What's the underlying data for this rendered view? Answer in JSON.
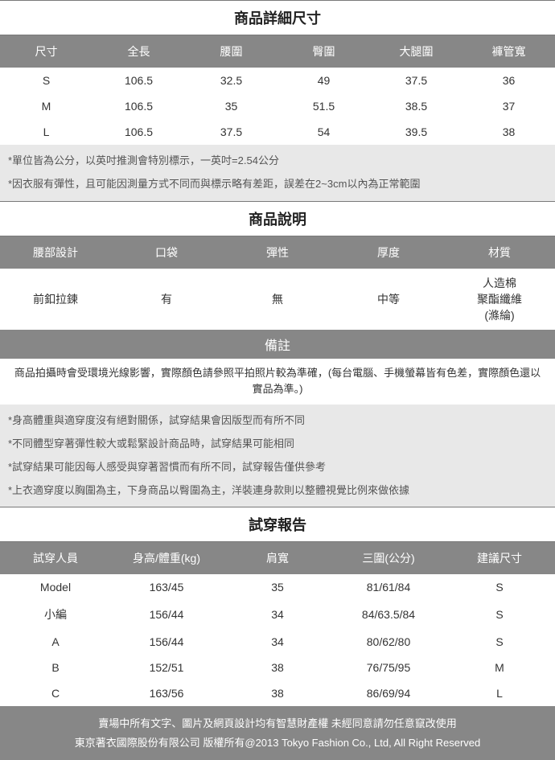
{
  "colors": {
    "header_bg": "#878787",
    "header_fg": "#ffffff",
    "body_fg": "#333333",
    "note_bg": "#e8e8e8",
    "border": "#7a7a7a"
  },
  "typography": {
    "title_fontsize": 18,
    "th_fontsize": 14,
    "td_fontsize": 14,
    "note_fontsize": 13,
    "foot_fontsize": 13
  },
  "size_section": {
    "title": "商品詳細尺寸",
    "columns": [
      "尺寸",
      "全長",
      "腰圍",
      "臀圍",
      "大腿圍",
      "褲管寬"
    ],
    "rows": [
      [
        "S",
        "106.5",
        "32.5",
        "49",
        "37.5",
        "36"
      ],
      [
        "M",
        "106.5",
        "35",
        "51.5",
        "38.5",
        "37"
      ],
      [
        "L",
        "106.5",
        "37.5",
        "54",
        "39.5",
        "38"
      ]
    ],
    "notes": [
      "*單位皆為公分，以英吋推測會特別標示，一英吋=2.54公分",
      "*因衣服有彈性，且可能因測量方式不同而與標示略有差距，誤差在2~3cm以內為正常範圍"
    ]
  },
  "desc_section": {
    "title": "商品說明",
    "columns": [
      "腰部設計",
      "口袋",
      "彈性",
      "厚度",
      "材質"
    ],
    "rows": [
      [
        "前釦拉鍊",
        "有",
        "無",
        "中等",
        "人造棉\n聚酯纖維\n(滌綸)"
      ]
    ]
  },
  "remark_section": {
    "title": "備註",
    "main": "商品拍攝時會受環境光線影響，實際顏色請參照平拍照片較為準確，(每台電腦、手機螢幕皆有色差，實際顏色還以實品為準。)",
    "notes": [
      "*身高體重與適穿度沒有絕對關係，試穿結果會因版型而有所不同",
      "*不同體型穿著彈性較大或鬆緊設計商品時，試穿結果可能相同",
      "*試穿結果可能因每人感受與穿著習慣而有所不同，試穿報告僅供參考",
      "*上衣適穿度以胸圍為主，下身商品以臀圍為主，洋裝連身款則以整體視覺比例來做依據"
    ]
  },
  "fit_section": {
    "title": "試穿報告",
    "columns": [
      "試穿人員",
      "身高/體重(kg)",
      "肩寬",
      "三圍(公分)",
      "建議尺寸"
    ],
    "rows": [
      [
        "Model",
        "163/45",
        "35",
        "81/61/84",
        "S"
      ],
      [
        "小編",
        "156/44",
        "34",
        "84/63.5/84",
        "S"
      ],
      [
        "A",
        "156/44",
        "34",
        "80/62/80",
        "S"
      ],
      [
        "B",
        "152/51",
        "38",
        "76/75/95",
        "M"
      ],
      [
        "C",
        "163/56",
        "38",
        "86/69/94",
        "L"
      ]
    ]
  },
  "footer": {
    "line1": "賣場中所有文字、圖片及網頁設計均有智慧財產權 未經同意請勿任意竄改使用",
    "line2": "東京著衣國際股份有限公司 版權所有@2013 Tokyo Fashion Co., Ltd, All Right Reserved"
  }
}
